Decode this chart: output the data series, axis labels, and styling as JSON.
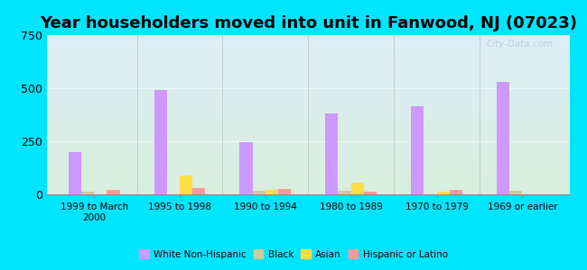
{
  "title": "Year householders moved into unit in Fanwood, NJ (07023)",
  "categories": [
    "1999 to March\n2000",
    "1995 to 1998",
    "1990 to 1994",
    "1980 to 1989",
    "1970 to 1979",
    "1969 or earlier"
  ],
  "series": {
    "White Non-Hispanic": [
      200,
      490,
      245,
      380,
      415,
      530
    ],
    "Black": [
      13,
      0,
      18,
      18,
      0,
      18
    ],
    "Asian": [
      0,
      90,
      22,
      55,
      12,
      0
    ],
    "Hispanic or Latino": [
      22,
      30,
      25,
      12,
      22,
      0
    ]
  },
  "colors": {
    "White Non-Hispanic": "#cc99ff",
    "Black": "#cccc99",
    "Asian": "#ffdd44",
    "Hispanic or Latino": "#ff9999"
  },
  "ylim": [
    0,
    750
  ],
  "yticks": [
    0,
    250,
    500,
    750
  ],
  "background_outer": "#00e5ff",
  "background_inner_top": "#ddeef8",
  "background_inner_bottom": "#d8eedd",
  "watermark": "City-Data.com",
  "bar_width": 0.15,
  "title_fontsize": 13
}
